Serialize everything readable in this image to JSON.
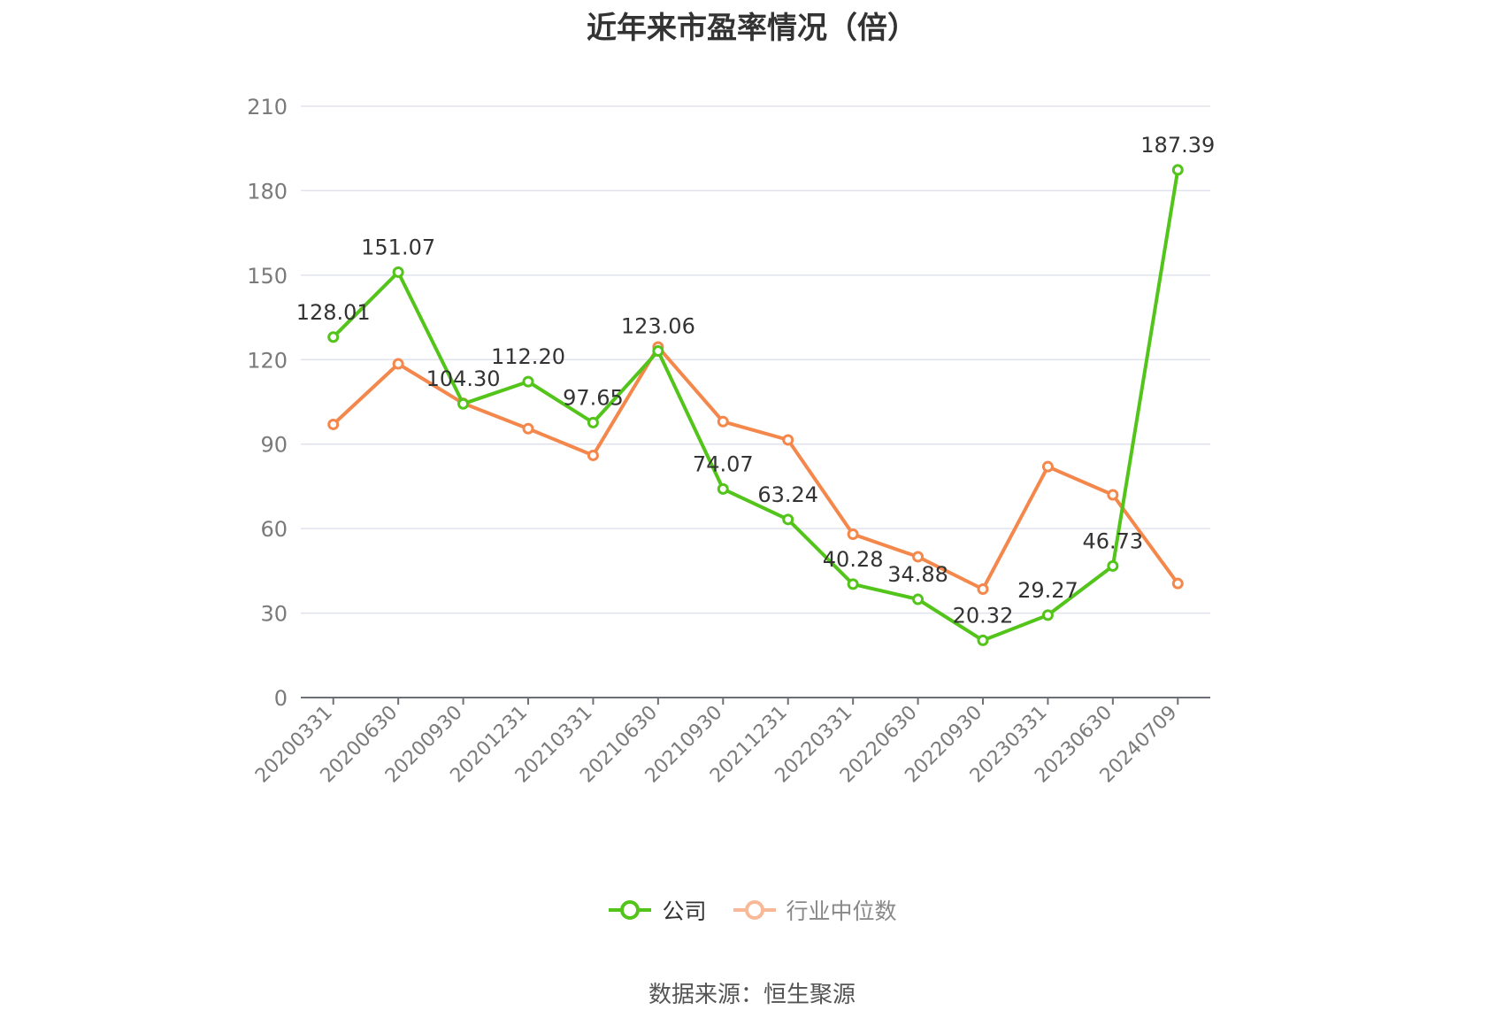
{
  "chart_data": {
    "type": "line",
    "title": "近年来市盈率情况（倍）",
    "categories": [
      "20200331",
      "20200630",
      "20200930",
      "20201231",
      "20210331",
      "20210630",
      "20210930",
      "20211231",
      "20220331",
      "20220630",
      "20220930",
      "20230331",
      "20230630",
      "20240709"
    ],
    "series": [
      {
        "name": "公司",
        "color": "#52c41a",
        "values": [
          128.01,
          151.07,
          104.3,
          112.2,
          97.65,
          123.06,
          74.07,
          63.24,
          40.28,
          34.88,
          20.32,
          29.27,
          46.73,
          187.39
        ],
        "labels": [
          "128.01",
          "151.07",
          "104.30",
          "112.20",
          "97.65",
          "123.06",
          "74.07",
          "63.24",
          "40.28",
          "34.88",
          "20.32",
          "29.27",
          "46.73",
          "187.39"
        ]
      },
      {
        "name": "行业中位数",
        "color": "#f4874b",
        "values": [
          97,
          118.5,
          104.5,
          95.5,
          86,
          124.5,
          98,
          91.5,
          58,
          50,
          38.5,
          82,
          72,
          40.5
        ]
      }
    ],
    "yticks": [
      "0",
      "30",
      "60",
      "90",
      "120",
      "150",
      "180",
      "210"
    ],
    "ylim": [
      0,
      210
    ],
    "grid": true,
    "legend_position": "bottom"
  },
  "source_text": "数据来源：恒生聚源"
}
